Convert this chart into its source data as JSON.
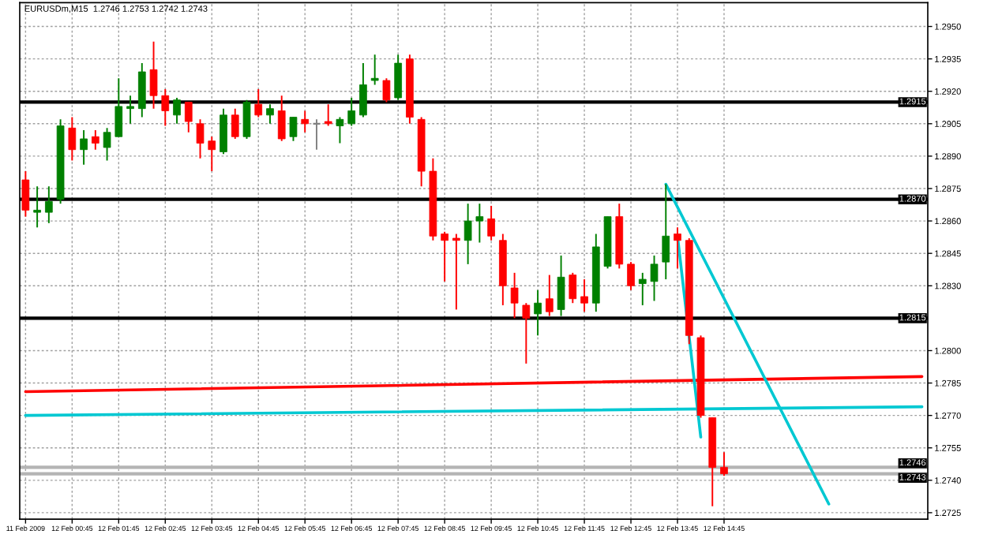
{
  "chart_data": {
    "type": "candlestick",
    "title": "EURUSDm,M15  1.2746 1.2753 1.2742 1.2743",
    "categories": [
      "11 Feb 2009",
      null,
      null,
      null,
      "12 Feb 00:45",
      null,
      null,
      null,
      "12 Feb 01:45",
      null,
      null,
      null,
      "12 Feb 02:45",
      null,
      null,
      null,
      "12 Feb 03:45",
      null,
      null,
      null,
      "12 Feb 04:45",
      null,
      null,
      null,
      "12 Feb 05:45",
      null,
      null,
      null,
      "12 Feb 06:45",
      null,
      null,
      null,
      "12 Feb 07:45",
      null,
      null,
      null,
      "12 Feb 08:45",
      null,
      null,
      null,
      "12 Feb 09:45",
      null,
      null,
      null,
      "12 Feb 10:45",
      null,
      null,
      null,
      "12 Feb 11:45",
      null,
      null,
      null,
      "12 Feb 12:45",
      null,
      null,
      null,
      "12 Feb 13:45",
      null,
      null,
      null,
      "12 Feb 14:45",
      null,
      null,
      null,
      null,
      null,
      null,
      null,
      null,
      null,
      null,
      null,
      null,
      null,
      null,
      null,
      null,
      null
    ],
    "ohlc": [
      [
        1.2879,
        1.2883,
        1.2862,
        1.2865
      ],
      [
        1.2864,
        1.2876,
        1.2857,
        1.2865
      ],
      [
        1.2864,
        1.2876,
        1.2859,
        1.2869
      ],
      [
        1.287,
        1.2907,
        1.2868,
        1.2904
      ],
      [
        1.2903,
        1.2908,
        1.2888,
        1.2893
      ],
      [
        1.2893,
        1.2902,
        1.2886,
        1.2898
      ],
      [
        1.2899,
        1.2902,
        1.2893,
        1.2896
      ],
      [
        1.2894,
        1.2903,
        1.2888,
        1.2901
      ],
      [
        1.2899,
        1.2926,
        1.2899,
        1.2913
      ],
      [
        1.2912,
        1.2918,
        1.2905,
        1.2913
      ],
      [
        1.2912,
        1.2933,
        1.2908,
        1.2929
      ],
      [
        1.293,
        1.2943,
        1.2912,
        1.2918
      ],
      [
        1.2918,
        1.2921,
        1.2904,
        1.2911
      ],
      [
        1.2909,
        1.2917,
        1.2905,
        1.2916
      ],
      [
        1.2915,
        1.2915,
        1.2901,
        1.2906
      ],
      [
        1.2905,
        1.2907,
        1.2889,
        1.2896
      ],
      [
        1.2897,
        1.2899,
        1.2883,
        1.2893
      ],
      [
        1.2892,
        1.2912,
        1.2891,
        1.2909
      ],
      [
        1.2909,
        1.2912,
        1.2898,
        1.2899
      ],
      [
        1.2899,
        1.2916,
        1.2898,
        1.2915
      ],
      [
        1.2914,
        1.2921,
        1.2908,
        1.2909
      ],
      [
        1.2909,
        1.2914,
        1.2905,
        1.2912
      ],
      [
        1.2911,
        1.2918,
        1.2897,
        1.2898
      ],
      [
        1.2899,
        1.2908,
        1.2897,
        1.2908
      ],
      [
        1.2907,
        1.2911,
        1.2901,
        1.2905
      ],
      [
        1.2905,
        1.2907,
        1.2893,
        1.2905
      ],
      [
        1.2906,
        1.2914,
        1.2904,
        1.2905
      ],
      [
        1.2904,
        1.2908,
        1.2896,
        1.2907
      ],
      [
        1.2905,
        1.2917,
        1.2904,
        1.2911
      ],
      [
        1.2909,
        1.2933,
        1.2908,
        1.2923
      ],
      [
        1.2925,
        1.2937,
        1.2923,
        1.2926
      ],
      [
        1.2925,
        1.2926,
        1.2915,
        1.2916
      ],
      [
        1.2917,
        1.2937,
        1.2916,
        1.2933
      ],
      [
        1.2935,
        1.2937,
        1.2905,
        1.2908
      ],
      [
        1.2907,
        1.2908,
        1.2876,
        1.2883
      ],
      [
        1.2883,
        1.2889,
        1.2851,
        1.2853
      ],
      [
        1.2854,
        1.2855,
        1.2832,
        1.2851
      ],
      [
        1.2852,
        1.2854,
        1.2819,
        1.2851
      ],
      [
        1.2851,
        1.2868,
        1.284,
        1.286
      ],
      [
        1.286,
        1.2868,
        1.285,
        1.2862
      ],
      [
        1.2861,
        1.2867,
        1.2851,
        1.2853
      ],
      [
        1.2851,
        1.2854,
        1.2821,
        1.283
      ],
      [
        1.2829,
        1.2836,
        1.2815,
        1.2822
      ],
      [
        1.2821,
        1.2822,
        1.2794,
        1.2815
      ],
      [
        1.2817,
        1.2828,
        1.2807,
        1.2822
      ],
      [
        1.2824,
        1.2835,
        1.2816,
        1.2818
      ],
      [
        1.2819,
        1.2844,
        1.2816,
        1.2834
      ],
      [
        1.2835,
        1.2836,
        1.2822,
        1.2824
      ],
      [
        1.2825,
        1.2833,
        1.2818,
        1.2822
      ],
      [
        1.2822,
        1.2854,
        1.2818,
        1.2848
      ],
      [
        1.2839,
        1.2862,
        1.2838,
        1.2862
      ],
      [
        1.2862,
        1.2868,
        1.2838,
        1.284
      ],
      [
        1.284,
        1.2841,
        1.2828,
        1.283
      ],
      [
        1.2831,
        1.2836,
        1.2821,
        1.2833
      ],
      [
        1.2832,
        1.2844,
        1.2823,
        1.284
      ],
      [
        1.2841,
        1.2877,
        1.2833,
        1.2853
      ],
      [
        1.2854,
        1.2857,
        1.2838,
        1.2851
      ],
      [
        1.2851,
        1.2852,
        1.2803,
        1.2807
      ],
      [
        1.2806,
        1.2807,
        1.2769,
        1.277
      ],
      [
        1.2769,
        1.2769,
        1.2728,
        1.2746
      ],
      [
        1.2746,
        1.2753,
        1.2742,
        1.2743
      ],
      null,
      null,
      null,
      null,
      null,
      null,
      null,
      null,
      null,
      null,
      null,
      null,
      null,
      null,
      null,
      null,
      null
    ],
    "colors": [
      "#ff0000",
      "#008000",
      "#008000",
      "#008000",
      "#ff0000",
      "#008000",
      "#ff0000",
      "#008000",
      "#008000",
      "#008000",
      "#008000",
      "#ff0000",
      "#ff0000",
      "#008000",
      "#ff0000",
      "#ff0000",
      "#ff0000",
      "#008000",
      "#ff0000",
      "#008000",
      "#ff0000",
      "#008000",
      "#ff0000",
      "#008000",
      "#ff0000",
      "#808080",
      "#ff0000",
      "#008000",
      "#008000",
      "#008000",
      "#008000",
      "#ff0000",
      "#008000",
      "#ff0000",
      "#ff0000",
      "#ff0000",
      "#ff0000",
      "#ff0000",
      "#008000",
      "#008000",
      "#ff0000",
      "#ff0000",
      "#ff0000",
      "#ff0000",
      "#008000",
      "#ff0000",
      "#008000",
      "#ff0000",
      "#ff0000",
      "#008000",
      "#008000",
      "#ff0000",
      "#ff0000",
      "#008000",
      "#008000",
      "#008000",
      "#ff0000",
      "#ff0000",
      "#ff0000",
      "#ff0000",
      "#ff0000",
      null,
      null,
      null,
      null,
      null,
      null,
      null,
      null,
      null,
      null,
      null,
      null,
      null,
      null,
      null,
      null,
      null
    ],
    "series": [
      {
        "type": "line",
        "color": "#ff0000",
        "values": [
          1.2781,
          null,
          null,
          null,
          null,
          null,
          null,
          null,
          null,
          null,
          null,
          null,
          null,
          null,
          null,
          null,
          null,
          null,
          null,
          null,
          null,
          null,
          null,
          null,
          null,
          null,
          null,
          null,
          null,
          null,
          null,
          null,
          null,
          null,
          null,
          null,
          null,
          null,
          null,
          null,
          null,
          null,
          null,
          null,
          null,
          null,
          null,
          null,
          null,
          null,
          null,
          null,
          null,
          null,
          null,
          null,
          null,
          null,
          null,
          null,
          null,
          null,
          null,
          null,
          null,
          null,
          null,
          null,
          null,
          null,
          null,
          null,
          null,
          null,
          null,
          null,
          null,
          1.2788
        ]
      },
      {
        "type": "line",
        "color": "#00c8d2",
        "values": [
          1.277,
          null,
          null,
          null,
          null,
          null,
          null,
          null,
          null,
          null,
          null,
          null,
          null,
          null,
          null,
          null,
          null,
          null,
          null,
          null,
          null,
          null,
          null,
          null,
          null,
          null,
          null,
          null,
          null,
          null,
          null,
          null,
          null,
          null,
          null,
          null,
          null,
          null,
          null,
          null,
          null,
          null,
          null,
          null,
          null,
          null,
          null,
          null,
          null,
          null,
          null,
          null,
          null,
          null,
          null,
          null,
          null,
          null,
          null,
          null,
          null,
          null,
          null,
          null,
          null,
          null,
          null,
          null,
          null,
          null,
          null,
          null,
          null,
          null,
          null,
          null,
          null,
          1.2774
        ]
      },
      {
        "type": "line",
        "color": "#00c8d2",
        "values": [
          null,
          null,
          null,
          null,
          null,
          null,
          null,
          null,
          null,
          null,
          null,
          null,
          null,
          null,
          null,
          null,
          null,
          null,
          null,
          null,
          null,
          null,
          null,
          null,
          null,
          null,
          null,
          null,
          null,
          null,
          null,
          null,
          null,
          null,
          null,
          null,
          null,
          null,
          null,
          null,
          null,
          null,
          null,
          null,
          null,
          null,
          null,
          null,
          null,
          null,
          null,
          null,
          null,
          null,
          null,
          1.2877,
          null,
          null,
          null,
          null,
          null,
          null,
          null,
          null,
          null,
          null,
          null,
          null,
          null,
          1.2729,
          null,
          null,
          null,
          null,
          null,
          null,
          null,
          null
        ]
      },
      {
        "type": "line",
        "color": "#00c8d2",
        "values": [
          null,
          null,
          null,
          null,
          null,
          null,
          null,
          null,
          null,
          null,
          null,
          null,
          null,
          null,
          null,
          null,
          null,
          null,
          null,
          null,
          null,
          null,
          null,
          null,
          null,
          null,
          null,
          null,
          null,
          null,
          null,
          null,
          null,
          null,
          null,
          null,
          null,
          null,
          null,
          null,
          null,
          null,
          null,
          null,
          null,
          null,
          null,
          null,
          null,
          null,
          null,
          null,
          null,
          null,
          null,
          null,
          1.2853,
          null,
          1.276,
          null,
          null,
          null,
          null,
          null,
          null,
          null,
          null,
          null,
          null,
          null,
          null,
          null,
          null,
          null,
          null,
          null,
          null,
          null
        ]
      }
    ],
    "ref_lines": [
      {
        "axis": "y",
        "value": 1.2915,
        "label": "1.2915",
        "color": "#000000"
      },
      {
        "axis": "y",
        "value": 1.287,
        "label": "1.2870",
        "color": "#000000"
      },
      {
        "axis": "y",
        "value": 1.2815,
        "label": "1.2815",
        "color": "#000000"
      },
      {
        "axis": "y",
        "value": 1.2746,
        "label": "1.2746",
        "color": "#b4b4b4"
      },
      {
        "axis": "y",
        "value": 1.2743,
        "label": "1.2743",
        "color": "#b4b4b4"
      }
    ],
    "ylim": [
      1.2722,
      1.2961
    ],
    "yticks": [
      {
        "value": 1.2725,
        "label": "1.2725"
      },
      {
        "value": 1.274,
        "label": "1.2740"
      },
      {
        "value": 1.2755,
        "label": "1.2755"
      },
      {
        "value": 1.277,
        "label": "1.2770"
      },
      {
        "value": 1.2785,
        "label": "1.2785"
      },
      {
        "value": 1.28,
        "label": "1.2800"
      },
      {
        "value": 1.283,
        "label": "1.2830"
      },
      {
        "value": 1.2845,
        "label": "1.2845"
      },
      {
        "value": 1.286,
        "label": "1.2860"
      },
      {
        "value": 1.2875,
        "label": "1.2875"
      },
      {
        "value": 1.289,
        "label": "1.2890"
      },
      {
        "value": 1.2905,
        "label": "1.2905"
      },
      {
        "value": 1.292,
        "label": "1.2920"
      },
      {
        "value": 1.2935,
        "label": "1.2935"
      },
      {
        "value": 1.295,
        "label": "1.2950"
      }
    ],
    "grid": true
  }
}
